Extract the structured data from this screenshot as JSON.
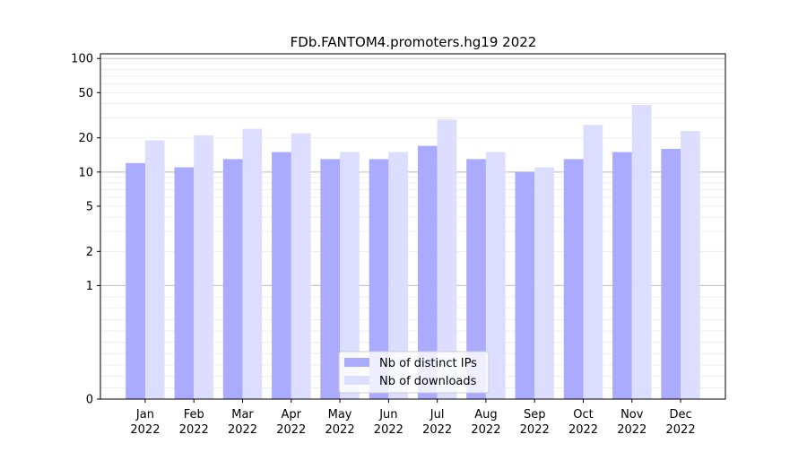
{
  "chart_data": {
    "type": "bar",
    "title": "FDb.FANTOM4.promoters.hg19 2022",
    "xlabel": "",
    "ylabel": "",
    "yscale": "symlog",
    "ylim": [
      0,
      110
    ],
    "yticks": [
      0,
      1,
      2,
      5,
      10,
      20,
      50,
      100
    ],
    "grid": true,
    "legend_position": "bottom-center",
    "categories": [
      [
        "Jan",
        "2022"
      ],
      [
        "Feb",
        "2022"
      ],
      [
        "Mar",
        "2022"
      ],
      [
        "Apr",
        "2022"
      ],
      [
        "May",
        "2022"
      ],
      [
        "Jun",
        "2022"
      ],
      [
        "Jul",
        "2022"
      ],
      [
        "Aug",
        "2022"
      ],
      [
        "Sep",
        "2022"
      ],
      [
        "Oct",
        "2022"
      ],
      [
        "Nov",
        "2022"
      ],
      [
        "Dec",
        "2022"
      ]
    ],
    "series": [
      {
        "name": "Nb of distinct IPs",
        "color": "#aaaaff",
        "values": [
          12,
          11,
          13,
          15,
          13,
          13,
          17,
          13,
          10,
          13,
          15,
          16
        ]
      },
      {
        "name": "Nb of downloads",
        "color": "#ddddff",
        "values": [
          19,
          21,
          24,
          22,
          15,
          15,
          29,
          15,
          11,
          26,
          39,
          23
        ]
      }
    ]
  }
}
